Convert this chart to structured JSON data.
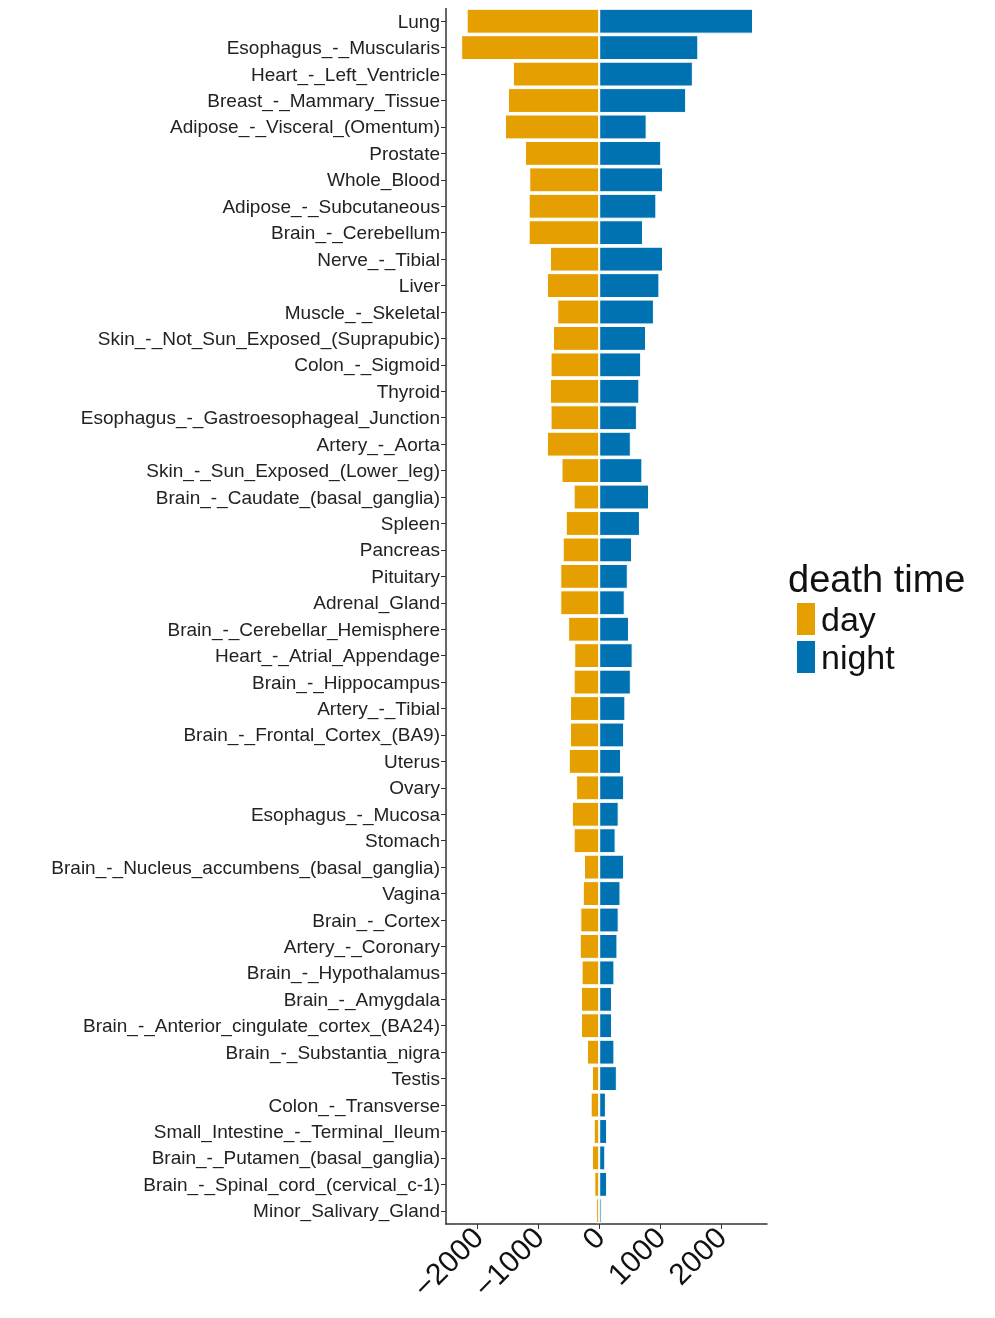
{
  "chart_data": {
    "type": "bar",
    "orientation": "horizontal",
    "stacked": true,
    "categories": [
      "Lung",
      "Esophagus_-_Muscularis",
      "Heart_-_Left_Ventricle",
      "Breast_-_Mammary_Tissue",
      "Adipose_-_Visceral_(Omentum)",
      "Prostate",
      "Whole_Blood",
      "Adipose_-_Subcutaneous",
      "Brain_-_Cerebellum",
      "Nerve_-_Tibial",
      "Liver",
      "Muscle_-_Skeletal",
      "Skin_-_Not_Sun_Exposed_(Suprapubic)",
      "Colon_-_Sigmoid",
      "Thyroid",
      "Esophagus_-_Gastroesophageal_Junction",
      "Artery_-_Aorta",
      "Skin_-_Sun_Exposed_(Lower_leg)",
      "Brain_-_Caudate_(basal_ganglia)",
      "Spleen",
      "Pancreas",
      "Pituitary",
      "Adrenal_Gland",
      "Brain_-_Cerebellar_Hemisphere",
      "Heart_-_Atrial_Appendage",
      "Brain_-_Hippocampus",
      "Artery_-_Tibial",
      "Brain_-_Frontal_Cortex_(BA9)",
      "Uterus",
      "Ovary",
      "Esophagus_-_Mucosa",
      "Stomach",
      "Brain_-_Nucleus_accumbens_(basal_ganglia)",
      "Vagina",
      "Brain_-_Cortex",
      "Artery_-_Coronary",
      "Brain_-_Hypothalamus",
      "Brain_-_Amygdala",
      "Brain_-_Anterior_cingulate_cortex_(BA24)",
      "Brain_-_Substantia_nigra",
      "Testis",
      "Colon_-_Transverse",
      "Small_Intestine_-_Terminal_Ileum",
      "Brain_-_Putamen_(basal_ganglia)",
      "Brain_-_Spinal_cord_(cervical_c-1)",
      "Minor_Salivary_Gland"
    ],
    "series": [
      {
        "name": "day",
        "color": "#e69f00",
        "values": [
          -2180,
          -2270,
          -1420,
          -1500,
          -1550,
          -1220,
          -1150,
          -1160,
          -1160,
          -810,
          -860,
          -690,
          -760,
          -800,
          -810,
          -800,
          -860,
          -620,
          -420,
          -550,
          -600,
          -640,
          -640,
          -510,
          -410,
          -420,
          -480,
          -480,
          -500,
          -380,
          -450,
          -420,
          -250,
          -270,
          -310,
          -320,
          -290,
          -300,
          -300,
          -200,
          -120,
          -140,
          -90,
          -120,
          -80,
          -50
        ]
      },
      {
        "name": "night",
        "color": "#0072b2",
        "values": [
          2530,
          1630,
          1540,
          1430,
          780,
          1020,
          1050,
          940,
          720,
          1050,
          990,
          900,
          770,
          690,
          660,
          620,
          520,
          710,
          820,
          670,
          540,
          470,
          420,
          490,
          550,
          520,
          430,
          410,
          360,
          410,
          320,
          270,
          410,
          350,
          320,
          300,
          250,
          210,
          210,
          250,
          290,
          110,
          130,
          100,
          130,
          40
        ]
      }
    ],
    "xlim": [
      -2520,
      2760
    ],
    "xticks": [
      {
        "value": -2000,
        "label": "−2000"
      },
      {
        "value": -1000,
        "label": "−1000"
      },
      0,
      1000,
      2000
    ],
    "legend_title": "death time",
    "legend": "right",
    "grid": false
  }
}
